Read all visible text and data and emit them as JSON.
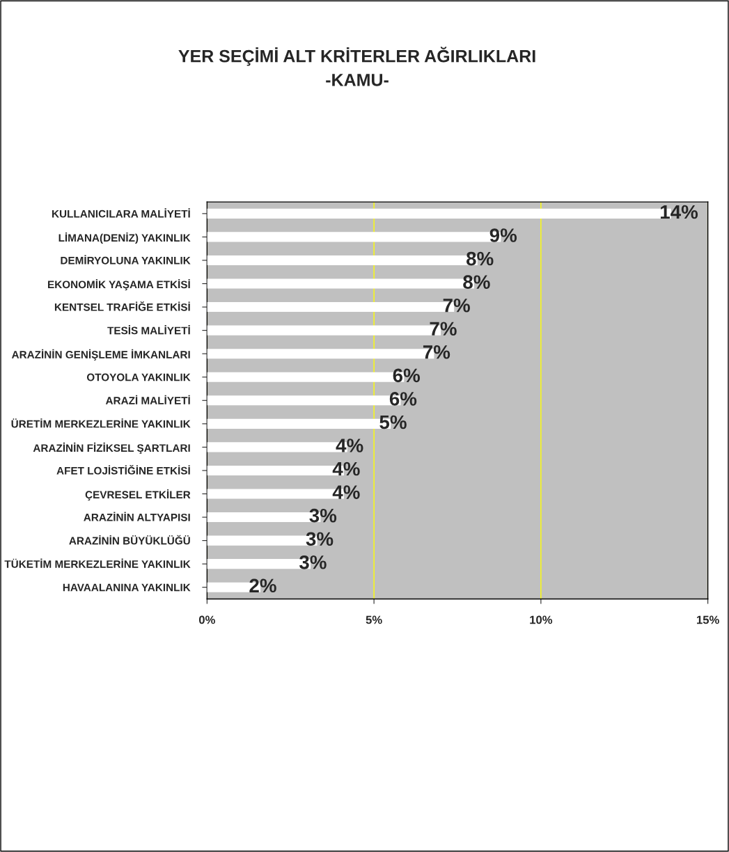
{
  "chart_data": {
    "type": "bar",
    "orientation": "horizontal",
    "title": "YER SEÇİMİ ALT KRİTERLER AĞIRLIKLARI\n-KAMU-",
    "categories": [
      "KULLANICILARA MALİYETİ",
      "LİMANA(DENİZ) YAKINLIK",
      "DEMİRYOLUNA YAKINLIK",
      "EKONOMİK YAŞAMA ETKİSİ",
      "KENTSEL TRAFİĞE ETKİSİ",
      "TESİS MALİYETİ",
      "ARAZİNİN GENİŞLEME İMKANLARI",
      "OTOYOLA YAKINLIK",
      "ARAZİ MALİYETİ",
      "ÜRETİM MERKEZLERİNE YAKINLIK",
      "ARAZİNİN FİZİKSEL ŞARTLARI",
      "AFET LOJİSTİĞİNE ETKİSİ",
      "ÇEVRESEL ETKİLER",
      "ARAZİNİN ALTYAPISI",
      "ARAZİNİN BÜYÜKLÜĞÜ",
      "TÜKETİM MERKEZLERİNE YAKINLIK",
      "HAVAALANINA YAKINLIK"
    ],
    "values": [
      13.9,
      8.8,
      8.1,
      8.0,
      7.4,
      7.0,
      6.8,
      5.9,
      5.8,
      5.5,
      4.2,
      4.1,
      4.1,
      3.4,
      3.3,
      3.1,
      1.6
    ],
    "value_labels": [
      "14%",
      "9%",
      "8%",
      "8%",
      "7%",
      "7%",
      "7%",
      "6%",
      "6%",
      "5%",
      "4%",
      "4%",
      "4%",
      "3%",
      "3%",
      "3%",
      "2%"
    ],
    "color": "#ffffff",
    "xlim": [
      0,
      15
    ],
    "xticks": [
      {
        "value": 0,
        "label": "0%"
      },
      {
        "value": 5,
        "label": "5%"
      },
      {
        "value": 10,
        "label": "10%"
      },
      {
        "value": 15,
        "label": "15%"
      }
    ],
    "grid": "x"
  }
}
